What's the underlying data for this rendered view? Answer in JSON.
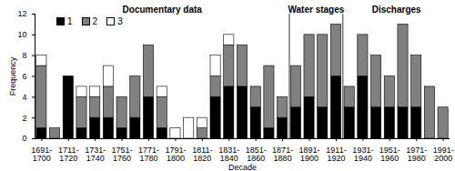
{
  "chart_data": {
    "type": "bar",
    "stacked": true,
    "x_label": "Decade",
    "y_label": "Frequency",
    "categories": [
      "1691-1700",
      null,
      "1711-1720",
      null,
      "1731-1740",
      null,
      "1751-1760",
      null,
      "1771-1780",
      null,
      "1791-1800",
      null,
      "1811-1820",
      null,
      "1831-1840",
      null,
      "1851-1860",
      null,
      "1871-1880",
      null,
      "1891-1900",
      null,
      "1911-1920",
      null,
      "1931-1940",
      null,
      "1951-1960",
      null,
      "1971-1980",
      null,
      "1991-2000"
    ],
    "series": [
      {
        "name": "1",
        "color": "#000000",
        "values": [
          1,
          0,
          6,
          1,
          2,
          2,
          1,
          2,
          4,
          1,
          0,
          0,
          0,
          4,
          5,
          5,
          3,
          1,
          2,
          3,
          4,
          3,
          6,
          3,
          6,
          3,
          3,
          3,
          3,
          0,
          0
        ]
      },
      {
        "name": "2",
        "color": "#808080",
        "values": [
          6,
          1,
          0,
          3,
          2,
          3,
          3,
          4,
          5,
          3,
          0,
          0,
          1,
          2,
          4,
          4,
          2,
          6,
          2,
          4,
          6,
          7,
          5,
          2,
          4,
          5,
          3,
          8,
          5,
          5,
          3
        ]
      },
      {
        "name": "3",
        "color": "#ffffff",
        "values": [
          1,
          0,
          0,
          1,
          1,
          2,
          0,
          0,
          0,
          1,
          1,
          2,
          1,
          2,
          1,
          0,
          0,
          0,
          0,
          0,
          0,
          0,
          0,
          0,
          0,
          0,
          0,
          0,
          0,
          0,
          0
        ]
      }
    ],
    "sections": [
      {
        "label": "Documentary data",
        "from": 0,
        "to": 18
      },
      {
        "label": "Water stages",
        "from": 19,
        "to": 22
      },
      {
        "label": "Discharges",
        "from": 23,
        "to": 30
      }
    ],
    "ylim": [
      0,
      12
    ],
    "yticks": [
      0,
      2,
      4,
      6,
      8,
      10,
      12
    ],
    "legend": "top-left",
    "grid": false
  }
}
